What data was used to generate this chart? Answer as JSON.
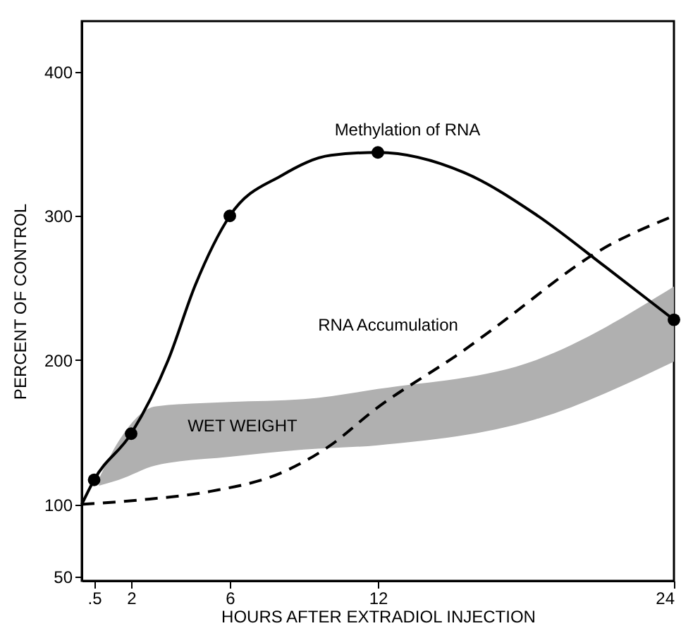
{
  "chart_data": {
    "type": "line",
    "xlabel": "HOURS AFTER EXTRADIOL INJECTION",
    "ylabel": "PERCENT OF CONTROL",
    "xlim": [
      0,
      24
    ],
    "ylim": [
      47,
      435
    ],
    "xticks": [
      {
        "value": 0.5,
        "label": ".5"
      },
      2,
      6,
      12,
      24
    ],
    "yticks": [
      50,
      100,
      200,
      300,
      400
    ],
    "grid": false,
    "series": [
      {
        "name": "WET WEIGHT",
        "x": [
          0.7,
          1.5,
          3,
          6,
          9,
          12,
          18.4,
          24
        ],
        "values": [
          null,
          null,
          null,
          null,
          null,
          null,
          null,
          null
        ],
        "lower": [
          113,
          117,
          127,
          133,
          138,
          141,
          159,
          199
        ],
        "upper": [
          118,
          144,
          168,
          171,
          173,
          180,
          200,
          251
        ]
      },
      {
        "name": "RNA Accumulation",
        "color": "#000000",
        "line_style": "dashed",
        "marker": "none",
        "x": [
          0,
          2.3,
          5.2,
          8.1,
          10,
          11.9,
          15.5,
          16.7,
          21.2,
          24
        ],
        "values": [
          100,
          103,
          109,
          122,
          140,
          166,
          207,
          222,
          278,
          300
        ]
      },
      {
        "name": "Methylation of RNA",
        "color": "#000000",
        "line_style": "solid",
        "marker": "none",
        "x": [
          0,
          0.5,
          2,
          3.5,
          4.6,
          6,
          8.1,
          10.1,
          12,
          15.5,
          18.4,
          21.2,
          24
        ],
        "values": [
          100,
          117,
          149,
          200,
          252,
          300,
          328,
          342,
          344,
          330,
          301,
          265,
          228
        ]
      },
      {
        "type": "scatter",
        "color": "#000000",
        "marker": "circle",
        "x": [
          0.5,
          2,
          6,
          12,
          24
        ],
        "values": [
          117,
          149,
          300,
          344,
          228
        ]
      }
    ]
  }
}
